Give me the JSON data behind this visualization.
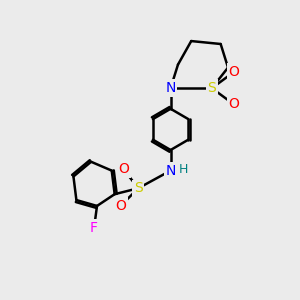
{
  "background_color": "#ebebeb",
  "atom_colors": {
    "N": "#0000ff",
    "S": "#cccc00",
    "O": "#ff0000",
    "F": "#ff00ff",
    "H": "#008080",
    "C": "#000000"
  },
  "bond_color": "#000000",
  "bond_width": 1.8,
  "dbo": 0.07,
  "font_size_atom": 10,
  "font_size_h": 9,
  "xlim": [
    0,
    10
  ],
  "ylim": [
    0,
    10
  ]
}
